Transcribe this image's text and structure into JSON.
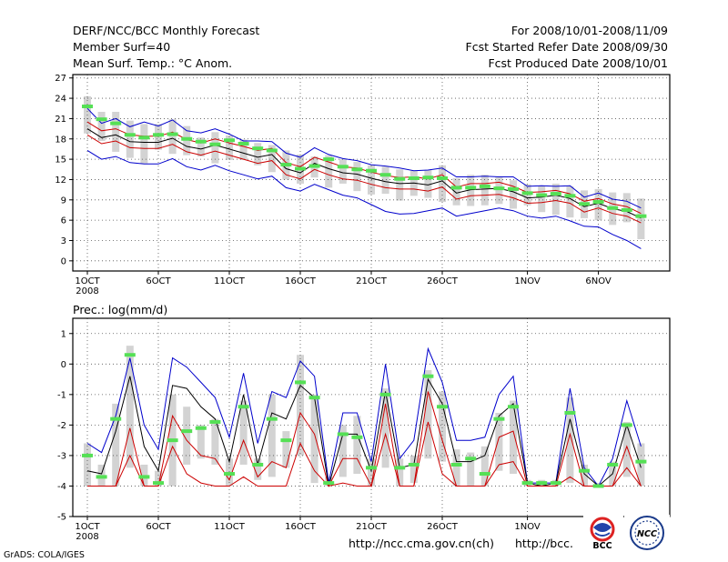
{
  "header": {
    "title": "DERF/NCC/BCC Monthly Forecast",
    "member_size": "Member Surf=40",
    "variable": "Mean Surf. Temp.: °C Anom.",
    "period": "For 2008/10/01-2008/11/09",
    "start_date": "Fcst Started Refer Date 2008/09/30",
    "produced_date": "Fcst Produced Date 2008/10/01"
  },
  "footer": {
    "grads": "GrADS: COLA/IGES",
    "url1": "http://ncc.cma.gov.cn(ch)",
    "url2": "http://bcc.",
    "logo1": "BCC",
    "logo2": "NCC"
  },
  "colors": {
    "member_bar": "#d3d3d3",
    "mean_mark": "#55e055",
    "upper_bound": "#0000cc",
    "lower_bound": "#cc0000",
    "ensemble_mean": "#000000",
    "grid": "#555555"
  },
  "chart_data": [
    {
      "type": "bar",
      "title": "Mean Surf. Temp.: °C Anom.",
      "xlabel": "",
      "ylabel": "",
      "ylim": [
        -1.5,
        27.5
      ],
      "yticks": [
        0,
        3,
        6,
        9,
        12,
        15,
        18,
        21,
        24,
        27
      ],
      "xticks": [
        "1OCT",
        "6OCT",
        "11OCT",
        "16OCT",
        "21OCT",
        "26OCT",
        "1NOV",
        "6NOV"
      ],
      "xtick_days": [
        1,
        6,
        11,
        16,
        21,
        26,
        32,
        37
      ],
      "x_sub_label": "2008",
      "days": [
        1,
        2,
        3,
        4,
        5,
        6,
        7,
        8,
        9,
        10,
        11,
        12,
        13,
        14,
        15,
        16,
        17,
        18,
        19,
        20,
        21,
        22,
        23,
        24,
        25,
        26,
        27,
        28,
        29,
        30,
        31,
        32,
        33,
        34,
        35,
        36,
        37,
        38,
        39,
        40
      ],
      "bar_top": [
        24.3,
        22.0,
        22.0,
        20.7,
        20.2,
        20.2,
        20.9,
        19.9,
        18.2,
        19.0,
        18.5,
        17.9,
        17.4,
        17.1,
        16.3,
        15.7,
        15.4,
        15.6,
        15.0,
        14.6,
        14.1,
        13.9,
        13.5,
        13.3,
        13.4,
        14.1,
        12.2,
        12.7,
        12.7,
        12.4,
        11.9,
        11.3,
        11.1,
        11.4,
        11.0,
        10.4,
        10.6,
        10.1,
        10.0,
        9.2
      ],
      "bar_bottom": [
        18.8,
        17.7,
        16.1,
        15.2,
        14.4,
        16.4,
        15.8,
        15.6,
        15.4,
        14.4,
        14.9,
        14.9,
        14.1,
        13.1,
        12.0,
        11.4,
        12.3,
        10.8,
        11.4,
        10.3,
        9.8,
        9.9,
        8.9,
        9.6,
        9.3,
        8.7,
        8.2,
        8.1,
        8.2,
        8.4,
        7.7,
        8.2,
        7.2,
        6.8,
        6.4,
        6.3,
        6.0,
        5.3,
        5.7,
        3.2
      ],
      "series": [
        {
          "name": "forecast",
          "values": [
            22.8,
            20.9,
            20.3,
            18.6,
            18.2,
            18.6,
            18.7,
            18.0,
            17.6,
            17.2,
            17.8,
            17.3,
            16.6,
            16.3,
            14.2,
            13.6,
            14.0,
            15.0,
            13.9,
            13.5,
            13.3,
            12.7,
            12.1,
            12.2,
            12.3,
            12.2,
            10.8,
            10.8,
            11.0,
            10.7,
            10.6,
            10.0,
            9.7,
            9.9,
            9.6,
            8.4,
            8.7,
            7.8,
            7.5,
            6.6
          ]
        },
        {
          "name": "upper",
          "values": [
            22.5,
            20.3,
            21.0,
            19.8,
            20.5,
            19.9,
            20.8,
            19.2,
            18.9,
            19.5,
            18.7,
            17.7,
            17.7,
            17.6,
            15.9,
            15.3,
            16.7,
            15.7,
            15.1,
            14.8,
            14.2,
            14.0,
            13.7,
            13.3,
            13.4,
            13.7,
            12.4,
            12.4,
            12.5,
            12.4,
            12.4,
            11.0,
            11.1,
            11.0,
            11.1,
            9.4,
            10.0,
            9.1,
            8.8,
            7.8
          ]
        },
        {
          "name": "mean",
          "values": [
            19.5,
            18.2,
            18.6,
            17.6,
            17.5,
            17.5,
            18.1,
            16.9,
            16.5,
            17.1,
            16.5,
            15.9,
            15.3,
            15.7,
            13.6,
            13.0,
            14.4,
            13.6,
            13.0,
            12.8,
            12.2,
            11.7,
            11.4,
            11.5,
            11.2,
            11.8,
            10.0,
            10.5,
            10.6,
            10.7,
            10.2,
            9.3,
            9.4,
            9.7,
            9.2,
            8.0,
            8.5,
            7.7,
            7.3,
            6.3
          ]
        },
        {
          "name": "lower",
          "values": [
            16.3,
            15.0,
            15.4,
            14.5,
            14.3,
            14.3,
            15.1,
            13.9,
            13.4,
            14.1,
            13.3,
            12.7,
            12.1,
            12.5,
            10.8,
            10.3,
            11.3,
            10.5,
            9.7,
            9.3,
            8.3,
            7.3,
            6.9,
            7.0,
            7.4,
            7.8,
            6.6,
            7.0,
            7.4,
            7.8,
            7.4,
            6.6,
            6.3,
            6.6,
            5.9,
            5.1,
            5.0,
            3.9,
            3.0,
            1.8
          ]
        },
        {
          "name": "inner_upper",
          "values": [
            20.5,
            19.2,
            19.5,
            18.6,
            18.4,
            18.4,
            19.0,
            17.9,
            17.4,
            18.0,
            17.4,
            16.9,
            16.3,
            16.6,
            14.5,
            13.9,
            15.3,
            14.6,
            13.9,
            13.7,
            13.1,
            12.6,
            12.3,
            12.4,
            12.1,
            12.7,
            10.9,
            11.4,
            11.4,
            11.6,
            11.0,
            10.1,
            10.2,
            10.4,
            9.9,
            8.8,
            9.2,
            8.4,
            8.0,
            7.0
          ]
        },
        {
          "name": "inner_lower",
          "values": [
            18.6,
            17.3,
            17.7,
            16.7,
            16.6,
            16.6,
            17.2,
            16.1,
            15.6,
            16.2,
            15.6,
            15.0,
            14.4,
            14.8,
            12.7,
            12.1,
            13.5,
            12.7,
            12.1,
            11.9,
            11.3,
            10.8,
            10.6,
            10.6,
            10.3,
            10.9,
            9.1,
            9.6,
            9.7,
            9.8,
            9.3,
            8.5,
            8.6,
            8.9,
            8.5,
            7.2,
            7.8,
            7.0,
            6.6,
            5.6
          ]
        }
      ]
    },
    {
      "type": "bar",
      "title": "Prec.: log(mm/d)",
      "xlabel": "",
      "ylabel": "",
      "ylim": [
        -5,
        1.5
      ],
      "yticks": [
        -5,
        -4,
        -3,
        -2,
        -1,
        0,
        1
      ],
      "xticks": [
        "1OCT",
        "6OCT",
        "11OCT",
        "16OCT",
        "21OCT",
        "26OCT",
        "1NOV"
      ],
      "xtick_days": [
        1,
        6,
        11,
        16,
        21,
        26,
        32
      ],
      "x_sub_label": "2008",
      "days": [
        1,
        2,
        3,
        4,
        5,
        6,
        7,
        8,
        9,
        10,
        11,
        12,
        13,
        14,
        15,
        16,
        17,
        18,
        19,
        20,
        21,
        22,
        23,
        24,
        25,
        26,
        27,
        28,
        29,
        30,
        31,
        32,
        33,
        34,
        35,
        36,
        37,
        38,
        39,
        40
      ],
      "bar_top": [
        -2.6,
        -3.3,
        -1.3,
        0.6,
        -3.3,
        -3.5,
        -1.0,
        -1.4,
        -2.0,
        -1.8,
        -3.1,
        -1.2,
        -3.1,
        -1.0,
        -2.2,
        0.3,
        -1.0,
        -3.7,
        -2.0,
        -1.7,
        -3.1,
        -0.8,
        -3.1,
        -3.0,
        -0.2,
        -0.9,
        -2.8,
        -2.9,
        -2.7,
        -1.6,
        -1.2,
        -3.8,
        -3.8,
        -3.8,
        -1.1,
        -3.3,
        -3.9,
        -3.2,
        -1.9,
        -2.6
      ],
      "bar_bottom": [
        -4.0,
        -4.0,
        -4.0,
        -3.4,
        -4.0,
        -4.0,
        -4.0,
        -3.3,
        -3.1,
        -3.3,
        -4.0,
        -3.3,
        -3.8,
        -3.7,
        -3.4,
        -3.0,
        -3.9,
        -4.0,
        -3.7,
        -3.6,
        -4.0,
        -3.4,
        -4.0,
        -3.9,
        -3.1,
        -3.2,
        -4.0,
        -4.0,
        -4.0,
        -3.5,
        -3.6,
        -4.0,
        -4.0,
        -4.0,
        -3.9,
        -4.0,
        -4.0,
        -4.0,
        -3.7,
        -4.0
      ],
      "series": [
        {
          "name": "forecast",
          "values": [
            -3.0,
            -3.7,
            -1.8,
            0.3,
            -3.7,
            -3.9,
            -2.5,
            -2.2,
            -2.1,
            -1.9,
            -3.6,
            -1.4,
            -3.3,
            -1.8,
            -2.5,
            -0.6,
            -1.1,
            -3.9,
            -2.3,
            -2.4,
            -3.4,
            -1.0,
            -3.4,
            -3.3,
            -0.4,
            -1.4,
            -3.3,
            -3.1,
            -3.6,
            -1.8,
            -1.4,
            -3.9,
            -3.9,
            -3.9,
            -1.6,
            -3.5,
            -4.0,
            -3.3,
            -2.0,
            -3.2
          ]
        },
        {
          "name": "upper",
          "values": [
            -2.6,
            -2.9,
            -1.7,
            0.2,
            -2.0,
            -2.8,
            0.2,
            -0.1,
            -0.6,
            -1.1,
            -2.4,
            -0.3,
            -2.6,
            -0.9,
            -1.1,
            0.1,
            -0.4,
            -3.9,
            -1.6,
            -1.6,
            -3.2,
            0.0,
            -3.1,
            -2.5,
            0.5,
            -0.6,
            -2.5,
            -2.5,
            -2.4,
            -1.0,
            -0.4,
            -3.9,
            -3.9,
            -3.9,
            -0.8,
            -3.4,
            -4.0,
            -3.1,
            -1.2,
            -2.7
          ]
        },
        {
          "name": "mean",
          "values": [
            -3.5,
            -3.6,
            -2.2,
            -0.4,
            -2.7,
            -3.5,
            -0.7,
            -0.8,
            -1.4,
            -1.8,
            -3.2,
            -1.0,
            -3.3,
            -1.6,
            -1.8,
            -0.7,
            -1.1,
            -4.0,
            -2.3,
            -2.3,
            -3.5,
            -0.9,
            -3.4,
            -3.3,
            -0.5,
            -1.3,
            -3.2,
            -3.2,
            -3.0,
            -1.7,
            -1.3,
            -3.9,
            -4.0,
            -3.9,
            -1.8,
            -3.6,
            -4.0,
            -3.6,
            -2.0,
            -3.4
          ]
        },
        {
          "name": "lower",
          "values": [
            -4.0,
            -4.0,
            -4.0,
            -2.1,
            -4.0,
            -4.0,
            -1.7,
            -2.5,
            -3.0,
            -3.1,
            -3.8,
            -2.5,
            -3.7,
            -3.2,
            -3.4,
            -1.6,
            -2.3,
            -4.0,
            -3.1,
            -3.1,
            -4.0,
            -1.3,
            -4.0,
            -4.0,
            -0.9,
            -2.5,
            -4.0,
            -4.0,
            -4.0,
            -2.4,
            -2.2,
            -4.0,
            -4.0,
            -4.0,
            -2.3,
            -4.0,
            -4.0,
            -4.0,
            -2.7,
            -4.0
          ]
        },
        {
          "name": "inner_lower",
          "values": [
            -4.0,
            -4.0,
            -4.0,
            -3.0,
            -4.0,
            -4.0,
            -2.7,
            -3.6,
            -3.9,
            -4.0,
            -4.0,
            -3.7,
            -4.0,
            -4.0,
            -4.0,
            -2.6,
            -3.5,
            -4.0,
            -3.9,
            -4.0,
            -4.0,
            -2.3,
            -4.0,
            -4.0,
            -1.9,
            -3.6,
            -4.0,
            -4.0,
            -4.0,
            -3.3,
            -3.2,
            -4.0,
            -4.0,
            -4.0,
            -3.7,
            -4.0,
            -4.0,
            -4.0,
            -3.4,
            -4.0
          ]
        }
      ]
    }
  ]
}
